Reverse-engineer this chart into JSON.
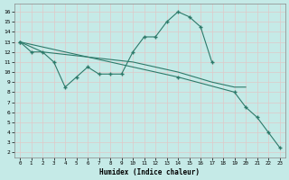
{
  "line1_x": [
    0,
    1,
    2,
    3,
    4,
    5,
    6,
    7,
    8,
    9,
    10,
    11,
    12,
    13,
    14,
    15,
    16,
    17
  ],
  "line1_y": [
    13,
    12,
    12,
    11,
    8.5,
    9.5,
    10.5,
    9.8,
    9.8,
    9.8,
    12,
    13.5,
    13.5,
    15,
    16,
    15.5,
    14.5,
    11
  ],
  "line2_x": [
    0,
    2,
    10,
    14,
    17,
    19,
    20
  ],
  "line2_y": [
    13,
    12,
    11,
    10,
    9,
    8.5,
    8.5
  ],
  "line3_x": [
    0,
    14,
    19,
    20,
    21,
    22,
    23
  ],
  "line3_y": [
    13,
    9.5,
    8,
    6.5,
    5.5,
    4,
    2.5
  ],
  "xlim": [
    -0.5,
    23.5
  ],
  "ylim": [
    1.5,
    16.8
  ],
  "yticks": [
    2,
    3,
    4,
    5,
    6,
    7,
    8,
    9,
    10,
    11,
    12,
    13,
    14,
    15,
    16
  ],
  "xticks": [
    0,
    1,
    2,
    3,
    4,
    5,
    6,
    7,
    8,
    9,
    10,
    11,
    12,
    13,
    14,
    15,
    16,
    17,
    18,
    19,
    20,
    21,
    22,
    23
  ],
  "xlabel": "Humidex (Indice chaleur)",
  "bg_color": "#c5eae7",
  "grid_color": "#e0c8c8",
  "line_color": "#2d7a6a"
}
